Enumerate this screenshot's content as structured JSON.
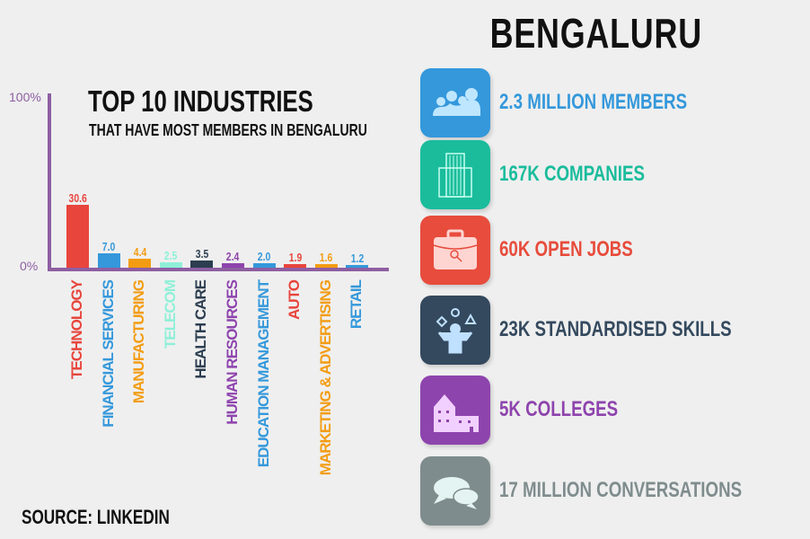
{
  "city": "BENGALURU",
  "source": "SOURCE: LINKEDIN",
  "chart_data": {
    "type": "bar",
    "title": "TOP 10 INDUSTRIES",
    "subtitle": "THAT HAVE MOST MEMBERS IN BENGALURU",
    "categories": [
      "TECHNOLOGY",
      "FINANCIAL SERVICES",
      "MANUFACTURING",
      "TELECOM",
      "HEALTH CARE",
      "HUMAN RESOURCES",
      "EDUCATION MANAGEMENT",
      "AUTO",
      "MARKETING & ADVERTISING",
      "RETAIL"
    ],
    "values": [
      30.6,
      7.0,
      4.4,
      2.5,
      3.5,
      2.4,
      2.0,
      1.9,
      1.6,
      1.2
    ],
    "value_labels": [
      "30.6",
      "7.0",
      "4.4",
      "2.5",
      "3.5",
      "2.4",
      "2.0",
      "1.9",
      "1.6",
      "1.2"
    ],
    "colors": [
      "#e8453c",
      "#3498db",
      "#f39c12",
      "#8ef0d8",
      "#2c3e50",
      "#8e44ad",
      "#3498db",
      "#e8453c",
      "#f39c12",
      "#3498db"
    ],
    "ytick_labels": [
      "100%",
      "0%"
    ],
    "ylim": [
      0,
      100
    ],
    "grid": false,
    "legend": "none"
  },
  "stats": [
    {
      "label": "2.3 MILLION MEMBERS",
      "icon": "people-icon",
      "color": "#3498db"
    },
    {
      "label": "167K COMPANIES",
      "icon": "building-icon",
      "color": "#1abc9c"
    },
    {
      "label": "60K OPEN JOBS",
      "icon": "briefcase-search-icon",
      "color": "#e74c3c"
    },
    {
      "label": "23K STANDARDISED SKILLS",
      "icon": "juggling-person-icon",
      "color": "#34495e"
    },
    {
      "label": "5K COLLEGES",
      "icon": "college-icon",
      "color": "#8e44ad"
    },
    {
      "label": "17 MILLION CONVERSATIONS",
      "icon": "chat-bubbles-icon",
      "color": "#7f8c8d"
    }
  ]
}
